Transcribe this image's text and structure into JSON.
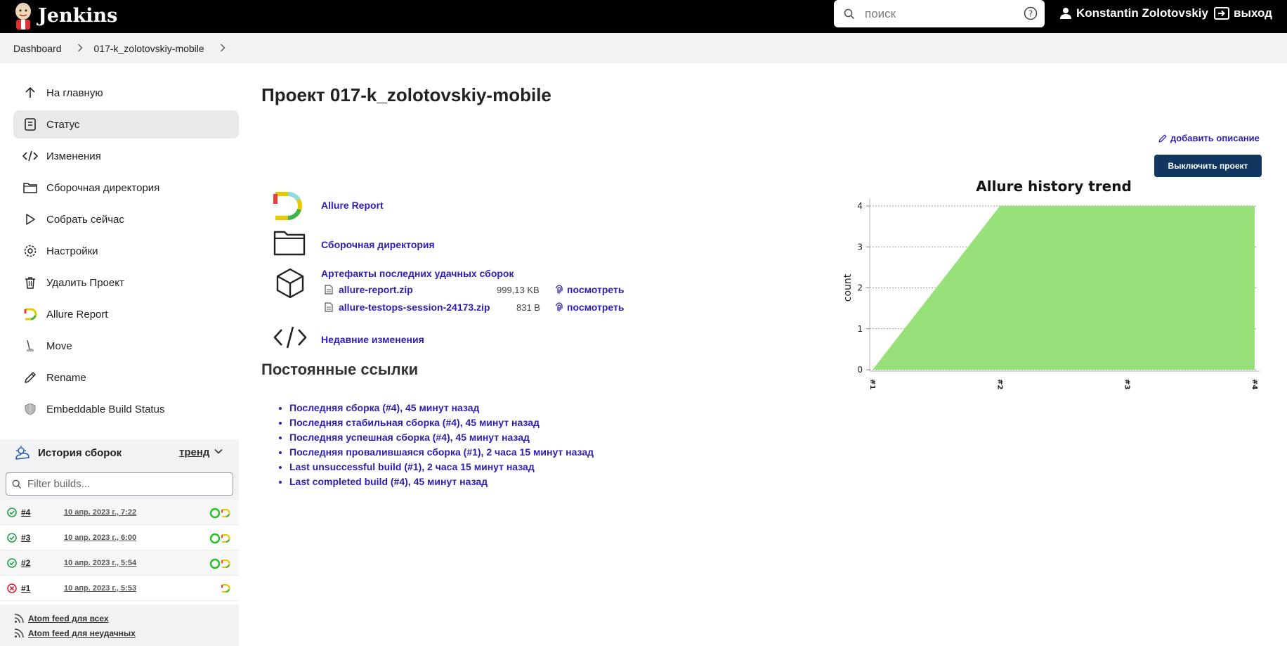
{
  "header": {
    "app_title": "Jenkins",
    "search_placeholder": "поиск",
    "user_name": "Konstantin Zolotovskiy",
    "logout_label": "выход"
  },
  "breadcrumb": [
    "Dashboard",
    "017-k_zolotovskiy-mobile"
  ],
  "sidebar": {
    "items": [
      {
        "label": "На главную",
        "icon": "arrow-up-icon"
      },
      {
        "label": "Статус",
        "icon": "document-icon"
      },
      {
        "label": "Изменения",
        "icon": "code-icon"
      },
      {
        "label": "Сборочная директория",
        "icon": "folder-icon"
      },
      {
        "label": "Собрать сейчас",
        "icon": "play-icon"
      },
      {
        "label": "Настройки",
        "icon": "gear-icon"
      },
      {
        "label": "Удалить Проект",
        "icon": "trash-icon"
      },
      {
        "label": "Allure Report",
        "icon": "allure-icon"
      },
      {
        "label": "Move",
        "icon": "move-icon"
      },
      {
        "label": "Rename",
        "icon": "pencil-icon"
      },
      {
        "label": "Embeddable Build Status",
        "icon": "shield-icon"
      }
    ]
  },
  "history": {
    "title": "История сборок",
    "trend_label": "тренд",
    "filter_placeholder": "Filter builds...",
    "builds": [
      {
        "number": "#4",
        "date": "10 апр. 2023 г., 7:22",
        "status": "success"
      },
      {
        "number": "#3",
        "date": "10 апр. 2023 г., 6:00",
        "status": "success"
      },
      {
        "number": "#2",
        "date": "10 апр. 2023 г., 5:54",
        "status": "success"
      },
      {
        "number": "#1",
        "date": "10 апр. 2023 г., 5:53",
        "status": "failed"
      }
    ],
    "feeds": [
      "Atom feed для всех",
      "Atom feed для неудачных"
    ]
  },
  "main": {
    "title": "Проект 017-k_zolotovskiy-mobile",
    "add_description": "добавить описание",
    "disable_button": "Выключить проект",
    "links": {
      "allure_report": "Allure Report",
      "workspace": "Сборочная директория",
      "artifacts": "Артефакты последних удачных сборок",
      "recent_changes": "Недавние изменения"
    },
    "artifacts": [
      {
        "name": "allure-report.zip",
        "size": "999,13 KB",
        "view": "посмотреть"
      },
      {
        "name": "allure-testops-session-24173.zip",
        "size": "831 B",
        "view": "посмотреть"
      }
    ],
    "permalinks_title": "Постоянные ссылки",
    "permalinks": [
      "Последняя сборка (#4), 45 минут назад",
      "Последняя стабильная сборка (#4), 45 минут назад",
      "Последняя успешная сборка (#4), 45 минут назад",
      "Последняя провалившаяся сборка (#1), 2 часа 15 минут назад",
      "Last unsuccessful build (#1), 2 часа 15 минут назад",
      "Last completed build (#4), 45 минут назад"
    ]
  },
  "colors": {
    "header_bg": "#000000",
    "link": "#2c1fb5",
    "primary_button": "#113760",
    "chart_fill": "#97e07a",
    "success": "#1ea446",
    "failure": "#d4243b"
  },
  "chart_data": {
    "type": "area",
    "title": "Allure history trend",
    "ylabel": "count",
    "xlabel": "",
    "categories": [
      "#1",
      "#2",
      "#3",
      "#4"
    ],
    "series": [
      {
        "values": [
          0,
          4,
          4,
          4
        ]
      }
    ],
    "ylim": [
      0,
      4
    ],
    "yticks": [
      0,
      1,
      2,
      3,
      4
    ],
    "grid": true
  }
}
